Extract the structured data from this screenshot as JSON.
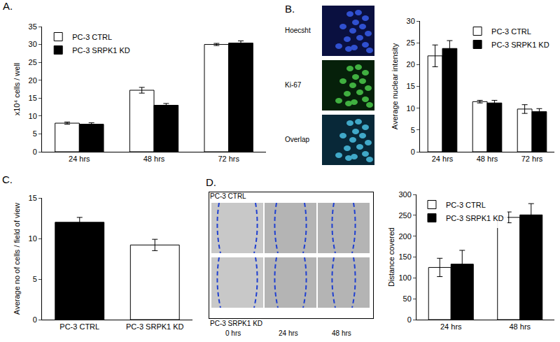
{
  "chart_data": [
    {
      "type": "bar",
      "title": "A.",
      "categories": [
        "24 hrs",
        "48 hrs",
        "72 hrs"
      ],
      "series": [
        {
          "name": "PC-3 CTRL",
          "color": "#ffffff",
          "values": [
            8,
            17.2,
            30
          ],
          "errors": [
            0.3,
            0.8,
            0.3
          ]
        },
        {
          "name": "PC-3 SRPK1 KD",
          "color": "#000000",
          "values": [
            7.7,
            13,
            30.4
          ],
          "errors": [
            0.4,
            0.5,
            0.6
          ]
        }
      ],
      "y_label": "x10⁴ cells / well",
      "ylim": [
        0,
        35
      ],
      "yticks": [
        0,
        5,
        10,
        15,
        20,
        25,
        30,
        35
      ],
      "grid": false,
      "legend": "upper left"
    },
    {
      "type": "bar",
      "categories": [
        "24 hrs",
        "48 hrs",
        "72 hrs"
      ],
      "series": [
        {
          "name": "PC-3 CTRL",
          "color": "#ffffff",
          "values": [
            22,
            11.5,
            9.8
          ],
          "errors": [
            2.5,
            0.3,
            1
          ]
        },
        {
          "name": "PC-3 SRPK1 KD",
          "color": "#000000",
          "values": [
            23.7,
            11.2,
            9.2
          ],
          "errors": [
            1.8,
            0.6,
            0.7
          ]
        }
      ],
      "y_label": "Average nuclear intensity",
      "ylim": [
        0,
        30
      ],
      "yticks": [
        0,
        5,
        10,
        15,
        20,
        25,
        30
      ],
      "grid": false,
      "legend": "upper right"
    },
    {
      "type": "bar",
      "title": "C.",
      "categories": [
        "PC-3 CTRL",
        "PC-3 SRPK1 KD"
      ],
      "values": [
        12,
        9.2
      ],
      "errors": [
        0.6,
        0.7
      ],
      "colors": [
        "#000000",
        "#ffffff"
      ],
      "y_label": "Average no of cells / field of view",
      "ylim": [
        0,
        15
      ],
      "yticks": [
        0,
        5,
        10,
        15
      ],
      "grid": false
    },
    {
      "type": "bar",
      "categories": [
        "24 hrs",
        "48 hrs"
      ],
      "series": [
        {
          "name": "PC-3 CTRL",
          "color": "#ffffff",
          "values": [
            125,
            245
          ],
          "errors": [
            22,
            13
          ]
        },
        {
          "name": "PC-3 SRPK1 KD",
          "color": "#000000",
          "values": [
            133,
            251
          ],
          "errors": [
            33,
            27
          ]
        }
      ],
      "y_label": "Distance covered",
      "ylim": [
        0,
        300
      ],
      "yticks": [
        0,
        50,
        100,
        150,
        200,
        250,
        300
      ],
      "grid": false,
      "legend": "upper left"
    }
  ],
  "images": {
    "B": {
      "title": "B.",
      "labels": [
        "Hoecsht",
        "Ki-67",
        "Overlap"
      ]
    },
    "D": {
      "title": "D.",
      "rows": [
        "PC-3 CTRL",
        "PC-3 SRPK1 KD"
      ],
      "columns": [
        "0 hrs",
        "24 hrs",
        "48 hrs"
      ]
    }
  }
}
